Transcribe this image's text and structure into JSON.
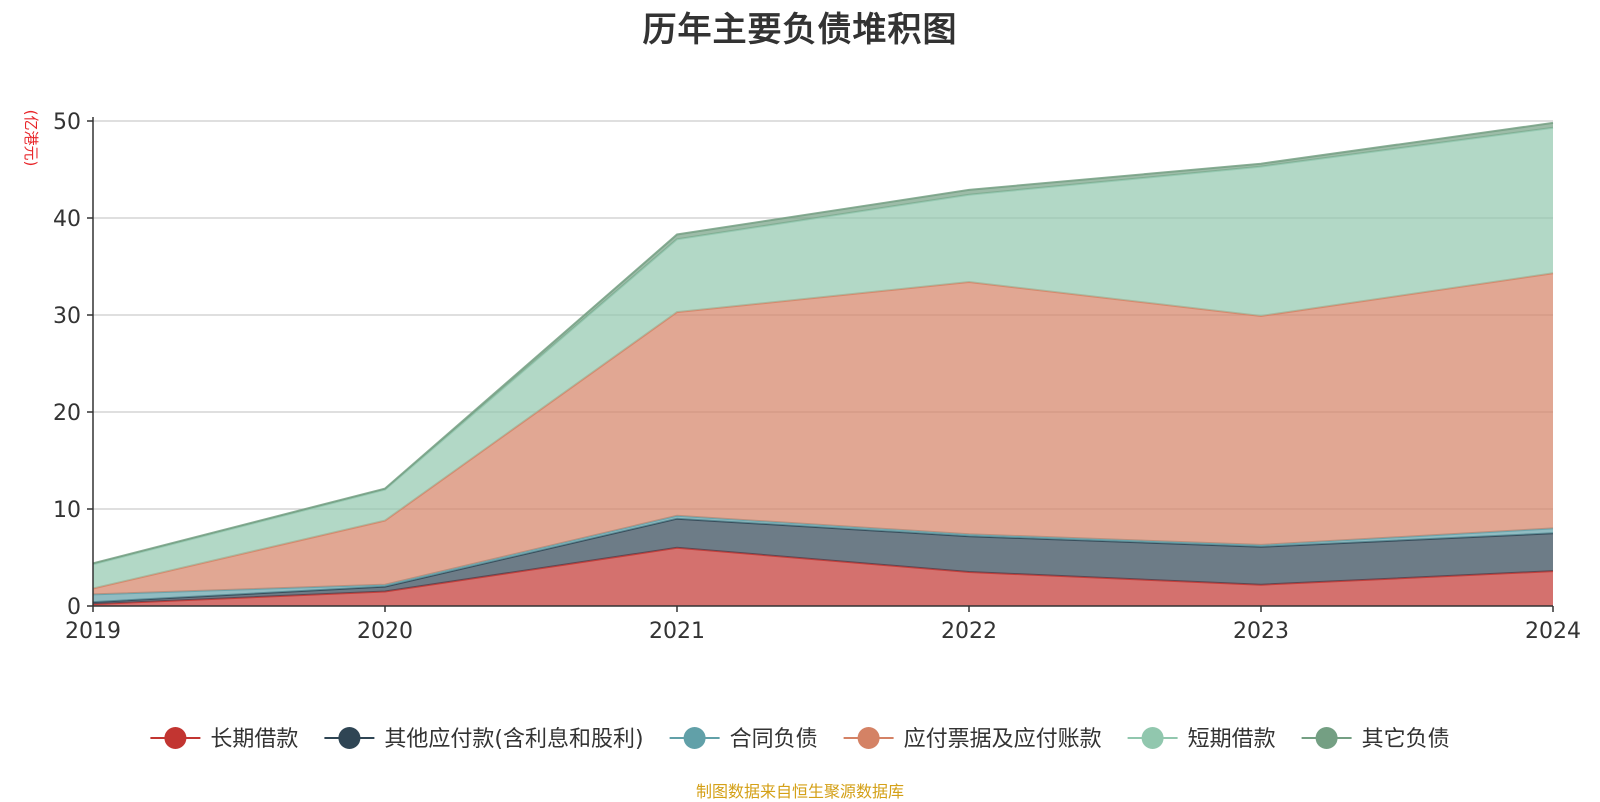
{
  "chart_data": {
    "type": "area",
    "stacked": true,
    "title": "历年主要负债堆积图",
    "unit_label": "(亿港元)",
    "x": [
      "2019",
      "2020",
      "2021",
      "2022",
      "2023",
      "2024"
    ],
    "ylim": [
      0,
      50
    ],
    "yticks": [
      0,
      10,
      20,
      30,
      40,
      50
    ],
    "grid": true,
    "legend_position": "bottom",
    "series": [
      {
        "name": "长期借款",
        "color": "#c23531",
        "values": [
          0.2,
          1.5,
          6.0,
          3.5,
          2.2,
          3.6
        ]
      },
      {
        "name": "其他应付款(含利息和股利)",
        "color": "#2f4554",
        "values": [
          0.2,
          0.5,
          3.0,
          3.7,
          3.9,
          3.9
        ]
      },
      {
        "name": "合同负债",
        "color": "#61a0a8",
        "values": [
          0.8,
          0.2,
          0.3,
          0.2,
          0.2,
          0.5
        ]
      },
      {
        "name": "应付票据及应付账款",
        "color": "#d48265",
        "values": [
          0.6,
          6.6,
          21.0,
          26.0,
          23.6,
          26.3
        ]
      },
      {
        "name": "短期借款",
        "color": "#91c7ae",
        "values": [
          2.5,
          3.2,
          7.5,
          9.0,
          15.4,
          15.0
        ]
      },
      {
        "name": "其它负债",
        "color": "#749f83",
        "values": [
          0.1,
          0.1,
          0.5,
          0.5,
          0.3,
          0.5
        ]
      }
    ],
    "source_note": "制图数据来自恒生聚源数据库",
    "colors": {
      "unit_label": "#e8262a",
      "source_note": "#d4a017"
    }
  }
}
